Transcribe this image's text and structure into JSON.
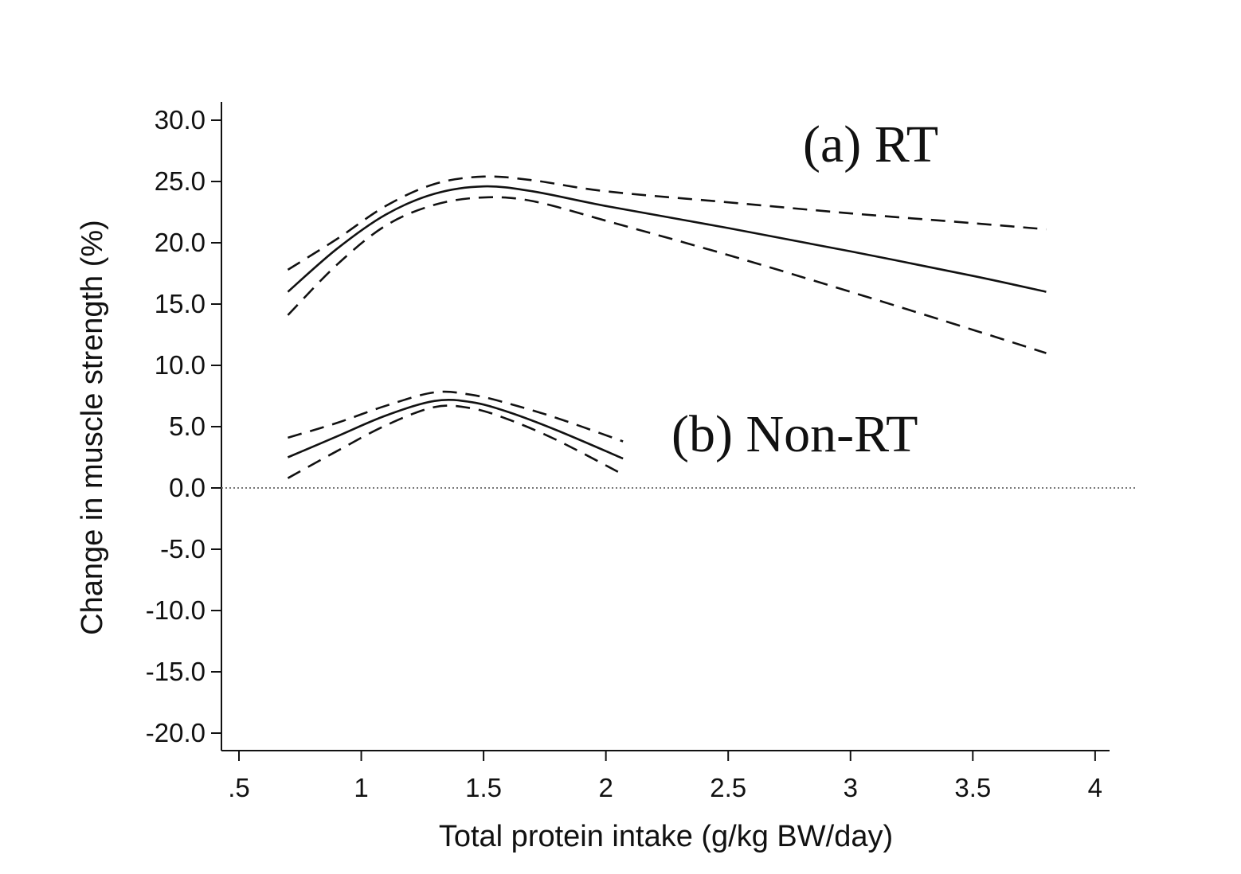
{
  "chart_data": {
    "type": "line",
    "title": "",
    "xlabel": "Total protein intake (g/kg BW/day)",
    "ylabel": "Change in muscle strength (%)",
    "xlim": [
      0.45,
      4.05
    ],
    "ylim": [
      -21.5,
      31.5
    ],
    "xticks": [
      0.5,
      1,
      1.5,
      2,
      2.5,
      3,
      3.5,
      4
    ],
    "xtick_labels": [
      ".5",
      "1",
      "1.5",
      "2",
      "2.5",
      "3",
      "3.5",
      "4"
    ],
    "yticks": [
      30,
      25,
      20,
      15,
      10,
      5,
      0,
      -5,
      -10,
      -15,
      -20
    ],
    "ytick_labels": [
      "30.0",
      "25.0",
      "20.0",
      "15.0",
      "10.0",
      "5.0",
      "0.0",
      "-5.0",
      "-10.0",
      "-15.0",
      "-20.0"
    ],
    "reference_line": {
      "y": 0,
      "style": "dotted"
    },
    "grid": false,
    "annotations": [
      {
        "text": "(a) RT",
        "group": "RT"
      },
      {
        "text": "(b) Non-RT",
        "group": "NonRT"
      }
    ],
    "series": [
      {
        "name": "RT estimate",
        "style": "solid",
        "x": [
          0.7,
          0.9,
          1.1,
          1.3,
          1.5,
          1.7,
          2.0,
          2.5,
          3.0,
          3.5,
          3.8
        ],
        "y": [
          16.0,
          19.5,
          22.3,
          24.0,
          24.6,
          24.2,
          23.0,
          21.2,
          19.3,
          17.3,
          16.0
        ]
      },
      {
        "name": "RT upper 95% CI",
        "style": "dashed",
        "x": [
          0.7,
          0.9,
          1.1,
          1.3,
          1.5,
          1.7,
          2.0,
          2.5,
          3.0,
          3.5,
          3.8
        ],
        "y": [
          17.8,
          20.3,
          23.0,
          24.8,
          25.4,
          25.1,
          24.2,
          23.3,
          22.4,
          21.6,
          21.1
        ]
      },
      {
        "name": "RT lower 95% CI",
        "style": "dashed",
        "x": [
          0.7,
          0.9,
          1.1,
          1.3,
          1.5,
          1.7,
          2.0,
          2.5,
          3.0,
          3.5,
          3.8
        ],
        "y": [
          14.1,
          18.2,
          21.4,
          23.1,
          23.7,
          23.4,
          21.8,
          19.0,
          16.0,
          12.9,
          11.0
        ]
      },
      {
        "name": "Non-RT estimate",
        "style": "solid",
        "x": [
          0.7,
          0.9,
          1.1,
          1.3,
          1.45,
          1.6,
          1.8,
          2.07
        ],
        "y": [
          2.5,
          4.2,
          5.9,
          7.1,
          7.0,
          6.2,
          4.7,
          2.4
        ]
      },
      {
        "name": "Non-RT upper 95% CI",
        "style": "dashed",
        "x": [
          0.7,
          0.9,
          1.1,
          1.3,
          1.45,
          1.6,
          1.8,
          2.07
        ],
        "y": [
          4.1,
          5.3,
          6.7,
          7.8,
          7.6,
          6.9,
          5.7,
          3.8
        ]
      },
      {
        "name": "Non-RT lower 95% CI",
        "style": "dashed",
        "x": [
          0.7,
          0.9,
          1.1,
          1.3,
          1.45,
          1.6,
          1.8,
          2.07
        ],
        "y": [
          0.8,
          3.0,
          5.1,
          6.6,
          6.5,
          5.6,
          3.9,
          1.1
        ]
      }
    ]
  }
}
